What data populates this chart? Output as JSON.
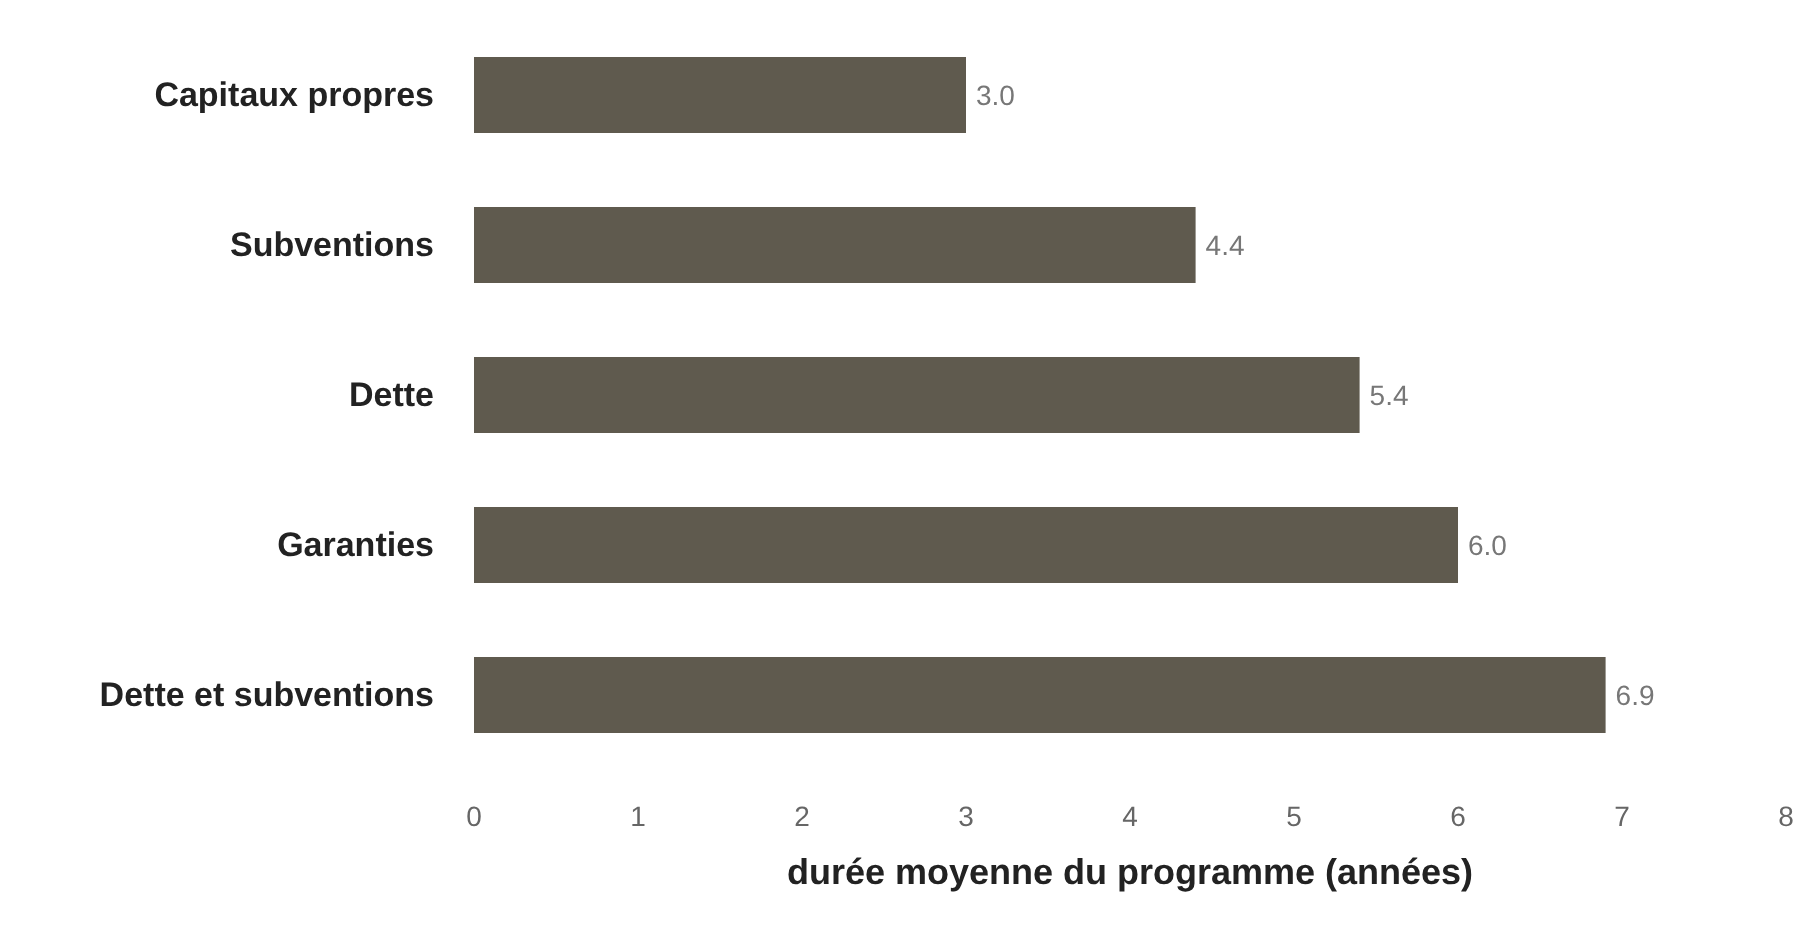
{
  "chart_data": {
    "type": "bar",
    "orientation": "horizontal",
    "xlabel": "durée moyenne du programme (années)",
    "categories": [
      "Capitaux propres",
      "Subventions",
      "Dette",
      "Garanties",
      "Dette et subventions"
    ],
    "values": [
      3.0,
      4.4,
      5.4,
      6.0,
      6.9
    ],
    "value_labels": [
      "3.0",
      "4.4",
      "5.4",
      "6.0",
      "6.9"
    ],
    "color": "#5f5a4e",
    "xlim": [
      0,
      8
    ],
    "xticks": [
      0,
      1,
      2,
      3,
      4,
      5,
      6,
      7,
      8
    ],
    "grid": false
  }
}
